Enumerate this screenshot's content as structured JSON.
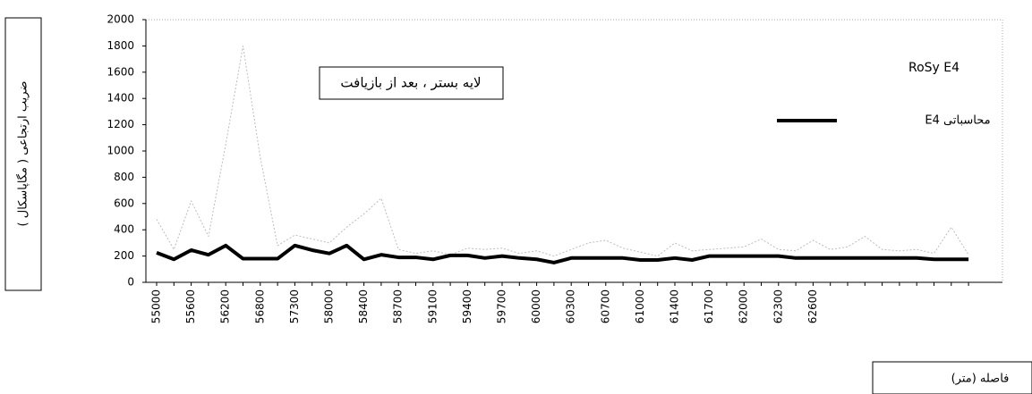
{
  "chart_data": {
    "type": "line",
    "annotation": "لایه بستر ، بعد از بازیافت",
    "ylabel": "ضریب ارتجاعی ( مگاپاسکال )",
    "xlabel": "فاصله (متر)",
    "categories": [
      "55000",
      null,
      "55600",
      null,
      "56200",
      null,
      "56800",
      null,
      "57300",
      null,
      "58000",
      null,
      "58400",
      null,
      "58700",
      null,
      "59100",
      null,
      "59400",
      null,
      "59700",
      null,
      "60000",
      null,
      "60300",
      null,
      "60700",
      null,
      "61000",
      null,
      "61400",
      null,
      "61700",
      null,
      "62000",
      null,
      "62300",
      null,
      "62600",
      null,
      null,
      null,
      null,
      null,
      null,
      null,
      null,
      null
    ],
    "series": [
      {
        "name": "RoSy E4",
        "color": "#bdbdbd",
        "values": [
          480,
          250,
          620,
          350,
          1050,
          1800,
          950,
          280,
          360,
          330,
          300,
          420,
          520,
          640,
          250,
          220,
          240,
          210,
          260,
          250,
          260,
          220,
          240,
          200,
          250,
          300,
          320,
          260,
          230,
          200,
          300,
          240,
          250,
          260,
          270,
          330,
          250,
          240,
          320,
          250,
          270,
          350,
          250,
          240,
          250,
          220,
          420,
          210
        ]
      },
      {
        "name": "محاسباتی E4",
        "color": "#000000",
        "values": [
          225,
          175,
          245,
          210,
          280,
          180,
          180,
          180,
          280,
          245,
          220,
          280,
          175,
          210,
          190,
          190,
          175,
          205,
          205,
          185,
          200,
          185,
          175,
          150,
          185,
          185,
          185,
          185,
          170,
          170,
          185,
          170,
          200,
          200,
          200,
          200,
          200,
          185,
          185,
          185,
          185,
          185,
          185,
          185,
          185,
          175,
          175,
          175
        ]
      }
    ],
    "ylim": [
      0,
      2000
    ],
    "yticks": [
      0,
      200,
      400,
      600,
      800,
      1000,
      1200,
      1400,
      1600,
      1800,
      2000
    ]
  }
}
